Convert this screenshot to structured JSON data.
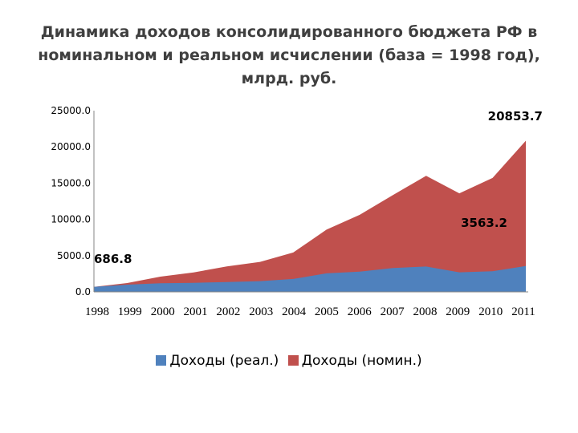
{
  "chart_data": {
    "type": "area",
    "title_lines": [
      "Динамика доходов консолидированного бюджета РФ в",
      "номинальном и реальном исчислении (база = 1998 год),",
      "млрд. руб."
    ],
    "x": [
      "1998",
      "1999",
      "2000",
      "2001",
      "2002",
      "2003",
      "2004",
      "2005",
      "2006",
      "2007",
      "2008",
      "2009",
      "2010",
      "2011"
    ],
    "yticks": [
      "0.0",
      "5000.0",
      "10000.0",
      "15000.0",
      "20000.0",
      "25000.0"
    ],
    "ylim": [
      0,
      25000
    ],
    "stacked": false,
    "series": [
      {
        "name": "Доходы (номин.)",
        "color": "#c0504d",
        "values": [
          686.8,
          1214,
          2098,
          2684,
          3516,
          4138,
          5429,
          8580,
          10626,
          13368,
          16004,
          13600,
          15715,
          20853.7
        ]
      },
      {
        "name": "Доходы (реал.)",
        "color": "#4f81bd",
        "values": [
          686.8,
          1000,
          1190,
          1250,
          1350,
          1480,
          1780,
          2550,
          2800,
          3300,
          3500,
          2700,
          2850,
          3563.2
        ]
      }
    ],
    "legend_order": [
      1,
      0
    ],
    "legend_position": "bottom",
    "data_labels": [
      "686.8",
      "20853.7",
      "3563.2"
    ],
    "grid": false
  }
}
